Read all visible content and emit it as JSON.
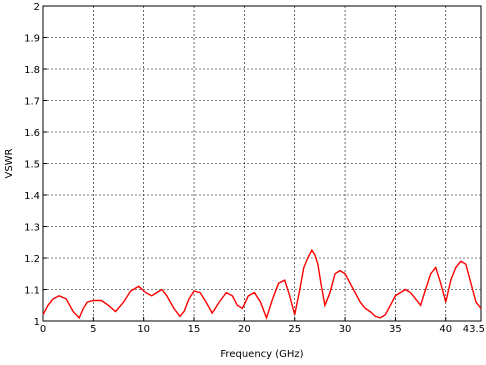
{
  "chart_data": {
    "type": "line",
    "xlabel": "Frequency (GHz)",
    "ylabel": "VSWR",
    "xlim": [
      0,
      43.5
    ],
    "ylim": [
      1,
      2
    ],
    "x_ticks": [
      0,
      5,
      10,
      15,
      20,
      25,
      30,
      35,
      40,
      43.5
    ],
    "x_tick_labels": [
      "0",
      "5",
      "10",
      "15",
      "20",
      "25",
      "30",
      "35",
      "40",
      "43.5"
    ],
    "y_ticks": [
      1,
      1.1,
      1.2,
      1.3,
      1.4,
      1.5,
      1.6,
      1.7,
      1.8,
      1.9,
      2
    ],
    "y_tick_labels": [
      "1",
      "1.1",
      "1.2",
      "1.3",
      "1.4",
      "1.5",
      "1.6",
      "1.7",
      "1.8",
      "1.9",
      "2"
    ],
    "grid": true,
    "line_color": "#ff0000",
    "series": [
      {
        "x": [
          0,
          0.5,
          1,
          1.6,
          2.3,
          3.0,
          3.6,
          4.0,
          4.4,
          5.0,
          5.8,
          6.5,
          7.2,
          8.0,
          8.7,
          9.5,
          10.2,
          10.8,
          11.3,
          11.8,
          12.3,
          13.0,
          13.6,
          14.0,
          14.5,
          15.0,
          15.6,
          16.2,
          16.8,
          17.5,
          18.2,
          18.8,
          19.3,
          19.8,
          20.4,
          21.0,
          21.6,
          22.2,
          22.8,
          23.4,
          24.0,
          24.5,
          25.0,
          25.5,
          25.9,
          26.3,
          26.7,
          27.0,
          27.3,
          27.6,
          28.0,
          28.5,
          29.0,
          29.5,
          30.0,
          30.5,
          31.0,
          31.5,
          32.0,
          32.5,
          33.0,
          33.5,
          34.0,
          34.5,
          35.0,
          35.5,
          36.0,
          36.5,
          37.0,
          37.5,
          38.0,
          38.5,
          39.0,
          39.5,
          40.0,
          40.5,
          41.0,
          41.5,
          42.0,
          42.5,
          43.0,
          43.5
        ],
        "y": [
          1.02,
          1.05,
          1.07,
          1.08,
          1.07,
          1.03,
          1.01,
          1.04,
          1.06,
          1.065,
          1.065,
          1.05,
          1.03,
          1.06,
          1.095,
          1.11,
          1.09,
          1.08,
          1.09,
          1.1,
          1.08,
          1.04,
          1.015,
          1.03,
          1.07,
          1.095,
          1.09,
          1.06,
          1.025,
          1.06,
          1.09,
          1.08,
          1.05,
          1.04,
          1.08,
          1.09,
          1.06,
          1.01,
          1.07,
          1.12,
          1.13,
          1.08,
          1.02,
          1.1,
          1.17,
          1.2,
          1.225,
          1.21,
          1.18,
          1.12,
          1.05,
          1.09,
          1.15,
          1.16,
          1.15,
          1.12,
          1.09,
          1.06,
          1.04,
          1.03,
          1.015,
          1.01,
          1.02,
          1.05,
          1.08,
          1.09,
          1.1,
          1.09,
          1.07,
          1.05,
          1.1,
          1.15,
          1.17,
          1.12,
          1.06,
          1.13,
          1.17,
          1.19,
          1.18,
          1.12,
          1.06,
          1.04
        ]
      }
    ]
  }
}
